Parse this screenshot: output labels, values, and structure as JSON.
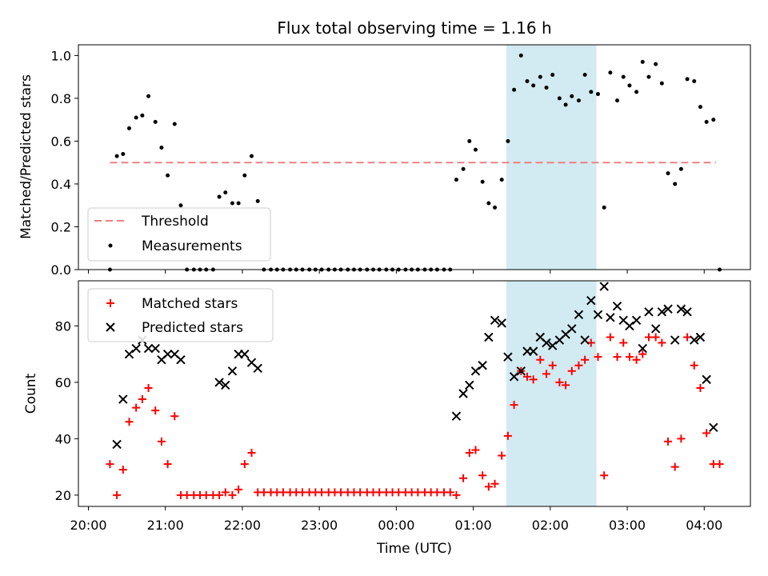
{
  "chart_data": {
    "title": "Flux total observing time = 1.16 h",
    "xlabel": "Time (UTC)",
    "x_unit": "hours since 20:00 UTC",
    "x_ticks": [
      {
        "value": 0,
        "label": "20:00"
      },
      {
        "value": 1,
        "label": "21:00"
      },
      {
        "value": 2,
        "label": "22:00"
      },
      {
        "value": 3,
        "label": "23:00"
      },
      {
        "value": 4,
        "label": "00:00"
      },
      {
        "value": 5,
        "label": "01:00"
      },
      {
        "value": 6,
        "label": "02:00"
      },
      {
        "value": 7,
        "label": "03:00"
      },
      {
        "value": 8,
        "label": "04:00"
      }
    ],
    "xlim": [
      -0.13,
      8.6
    ],
    "highlight": {
      "x_start": 5.43,
      "x_end": 6.6,
      "color": "#add8e6"
    },
    "top": {
      "type": "scatter",
      "ylabel": "Matched/Predicted stars",
      "ylim": [
        0,
        1.05
      ],
      "y_ticks": [
        "0.0",
        "0.2",
        "0.4",
        "0.6",
        "0.8",
        "1.0"
      ],
      "legend_position": "lower-left",
      "threshold": {
        "name": "Threshold",
        "value": 0.5,
        "x_start": 0.28,
        "x_end": 8.15,
        "color": "#f08080"
      },
      "series": [
        {
          "name": "Measurements",
          "color": "#000000",
          "marker": "dot",
          "points": [
            [
              0.28,
              0
            ],
            [
              0.37,
              0.53
            ],
            [
              0.45,
              0.54
            ],
            [
              0.53,
              0.66
            ],
            [
              0.62,
              0.71
            ],
            [
              0.7,
              0.72
            ],
            [
              0.78,
              0.81
            ],
            [
              0.87,
              0.69
            ],
            [
              0.95,
              0.57
            ],
            [
              1.03,
              0.44
            ],
            [
              1.12,
              0.68
            ],
            [
              1.2,
              0.3
            ],
            [
              1.28,
              0
            ],
            [
              1.37,
              0
            ],
            [
              1.45,
              0
            ],
            [
              1.53,
              0
            ],
            [
              1.62,
              0
            ],
            [
              1.7,
              0.34
            ],
            [
              1.78,
              0.36
            ],
            [
              1.87,
              0.31
            ],
            [
              1.95,
              0.31
            ],
            [
              2.03,
              0.44
            ],
            [
              2.12,
              0.53
            ],
            [
              2.2,
              0.32
            ],
            [
              2.28,
              0
            ],
            [
              2.37,
              0
            ],
            [
              2.45,
              0
            ],
            [
              2.53,
              0
            ],
            [
              2.62,
              0
            ],
            [
              2.7,
              0
            ],
            [
              2.78,
              0
            ],
            [
              2.87,
              0
            ],
            [
              2.95,
              0
            ],
            [
              3.03,
              0
            ],
            [
              3.12,
              0
            ],
            [
              3.2,
              0
            ],
            [
              3.28,
              0
            ],
            [
              3.37,
              0
            ],
            [
              3.45,
              0
            ],
            [
              3.53,
              0
            ],
            [
              3.62,
              0
            ],
            [
              3.7,
              0
            ],
            [
              3.78,
              0
            ],
            [
              3.87,
              0
            ],
            [
              3.95,
              0
            ],
            [
              4.03,
              0
            ],
            [
              4.12,
              0
            ],
            [
              4.2,
              0
            ],
            [
              4.28,
              0
            ],
            [
              4.37,
              0
            ],
            [
              4.45,
              0
            ],
            [
              4.53,
              0
            ],
            [
              4.62,
              0
            ],
            [
              4.7,
              0
            ],
            [
              4.78,
              0.42
            ],
            [
              4.87,
              0.47
            ],
            [
              4.95,
              0.6
            ],
            [
              5.03,
              0.56
            ],
            [
              5.12,
              0.41
            ],
            [
              5.2,
              0.31
            ],
            [
              5.28,
              0.29
            ],
            [
              5.37,
              0.42
            ],
            [
              5.45,
              0.6
            ],
            [
              5.53,
              0.84
            ],
            [
              5.62,
              1.0
            ],
            [
              5.7,
              0.88
            ],
            [
              5.78,
              0.86
            ],
            [
              5.87,
              0.9
            ],
            [
              5.95,
              0.85
            ],
            [
              6.03,
              0.91
            ],
            [
              6.12,
              0.8
            ],
            [
              6.2,
              0.77
            ],
            [
              6.28,
              0.81
            ],
            [
              6.37,
              0.79
            ],
            [
              6.45,
              0.91
            ],
            [
              6.53,
              0.83
            ],
            [
              6.62,
              0.82
            ],
            [
              6.7,
              0.29
            ],
            [
              6.78,
              0.92
            ],
            [
              6.87,
              0.79
            ],
            [
              6.95,
              0.9
            ],
            [
              7.03,
              0.86
            ],
            [
              7.12,
              0.83
            ],
            [
              7.2,
              0.97
            ],
            [
              7.28,
              0.9
            ],
            [
              7.37,
              0.96
            ],
            [
              7.45,
              0.87
            ],
            [
              7.53,
              0.45
            ],
            [
              7.62,
              0.4
            ],
            [
              7.7,
              0.47
            ],
            [
              7.78,
              0.89
            ],
            [
              7.87,
              0.88
            ],
            [
              7.95,
              0.76
            ],
            [
              8.03,
              0.69
            ],
            [
              8.12,
              0.7
            ],
            [
              8.2,
              0
            ]
          ]
        }
      ]
    },
    "bottom": {
      "type": "scatter",
      "ylabel": "Count",
      "ylim": [
        16,
        96
      ],
      "y_ticks": [
        "20",
        "40",
        "60",
        "80"
      ],
      "legend_position": "upper-left",
      "series": [
        {
          "name": "Matched stars",
          "color": "#ff0000",
          "marker": "plus",
          "points": [
            [
              0.28,
              31
            ],
            [
              0.37,
              20
            ],
            [
              0.45,
              29
            ],
            [
              0.53,
              46
            ],
            [
              0.62,
              51
            ],
            [
              0.7,
              54
            ],
            [
              0.78,
              58
            ],
            [
              0.87,
              50
            ],
            [
              0.95,
              39
            ],
            [
              1.03,
              31
            ],
            [
              1.12,
              48
            ],
            [
              1.2,
              20
            ],
            [
              1.28,
              20
            ],
            [
              1.37,
              20
            ],
            [
              1.45,
              20
            ],
            [
              1.53,
              20
            ],
            [
              1.62,
              20
            ],
            [
              1.7,
              20
            ],
            [
              1.78,
              21
            ],
            [
              1.87,
              20
            ],
            [
              1.95,
              22
            ],
            [
              2.03,
              31
            ],
            [
              2.12,
              35
            ],
            [
              2.2,
              21
            ],
            [
              2.28,
              21
            ],
            [
              2.37,
              21
            ],
            [
              2.45,
              21
            ],
            [
              2.53,
              21
            ],
            [
              2.62,
              21
            ],
            [
              2.7,
              21
            ],
            [
              2.78,
              21
            ],
            [
              2.87,
              21
            ],
            [
              2.95,
              21
            ],
            [
              3.03,
              21
            ],
            [
              3.12,
              21
            ],
            [
              3.2,
              21
            ],
            [
              3.28,
              21
            ],
            [
              3.37,
              21
            ],
            [
              3.45,
              21
            ],
            [
              3.53,
              21
            ],
            [
              3.62,
              21
            ],
            [
              3.7,
              21
            ],
            [
              3.78,
              21
            ],
            [
              3.87,
              21
            ],
            [
              3.95,
              21
            ],
            [
              4.03,
              21
            ],
            [
              4.12,
              21
            ],
            [
              4.2,
              21
            ],
            [
              4.28,
              21
            ],
            [
              4.37,
              21
            ],
            [
              4.45,
              21
            ],
            [
              4.53,
              21
            ],
            [
              4.62,
              21
            ],
            [
              4.7,
              21
            ],
            [
              4.78,
              20
            ],
            [
              4.87,
              26
            ],
            [
              4.95,
              35
            ],
            [
              5.03,
              36
            ],
            [
              5.12,
              27
            ],
            [
              5.2,
              23
            ],
            [
              5.28,
              24
            ],
            [
              5.37,
              34
            ],
            [
              5.45,
              41
            ],
            [
              5.53,
              52
            ],
            [
              5.62,
              64
            ],
            [
              5.7,
              62
            ],
            [
              5.78,
              61
            ],
            [
              5.87,
              68
            ],
            [
              5.95,
              63
            ],
            [
              6.03,
              66
            ],
            [
              6.12,
              60
            ],
            [
              6.2,
              59
            ],
            [
              6.28,
              64
            ],
            [
              6.37,
              66
            ],
            [
              6.45,
              68
            ],
            [
              6.53,
              74
            ],
            [
              6.62,
              69
            ],
            [
              6.7,
              27
            ],
            [
              6.78,
              76
            ],
            [
              6.87,
              69
            ],
            [
              6.95,
              74
            ],
            [
              7.03,
              69
            ],
            [
              7.12,
              68
            ],
            [
              7.2,
              70
            ],
            [
              7.28,
              76
            ],
            [
              7.37,
              76
            ],
            [
              7.45,
              74
            ],
            [
              7.53,
              39
            ],
            [
              7.62,
              30
            ],
            [
              7.7,
              40
            ],
            [
              7.78,
              76
            ],
            [
              7.87,
              66
            ],
            [
              7.95,
              58
            ],
            [
              8.03,
              42
            ],
            [
              8.12,
              31
            ],
            [
              8.2,
              31
            ]
          ]
        },
        {
          "name": "Predicted stars",
          "color": "#000000",
          "marker": "x",
          "points": [
            [
              0.37,
              38
            ],
            [
              0.45,
              54
            ],
            [
              0.53,
              70
            ],
            [
              0.62,
              72
            ],
            [
              0.7,
              75
            ],
            [
              0.78,
              72
            ],
            [
              0.87,
              72
            ],
            [
              0.95,
              68
            ],
            [
              1.03,
              70
            ],
            [
              1.12,
              70
            ],
            [
              1.2,
              68
            ],
            [
              1.7,
              60
            ],
            [
              1.78,
              59
            ],
            [
              1.87,
              64
            ],
            [
              1.95,
              70
            ],
            [
              2.03,
              70
            ],
            [
              2.12,
              67
            ],
            [
              2.2,
              65
            ],
            [
              4.78,
              48
            ],
            [
              4.87,
              56
            ],
            [
              4.95,
              59
            ],
            [
              5.03,
              64
            ],
            [
              5.12,
              66
            ],
            [
              5.2,
              76
            ],
            [
              5.28,
              82
            ],
            [
              5.37,
              81
            ],
            [
              5.45,
              69
            ],
            [
              5.53,
              62
            ],
            [
              5.62,
              64
            ],
            [
              5.7,
              71
            ],
            [
              5.78,
              71
            ],
            [
              5.87,
              76
            ],
            [
              5.95,
              74
            ],
            [
              6.03,
              73
            ],
            [
              6.12,
              75
            ],
            [
              6.2,
              77
            ],
            [
              6.28,
              79
            ],
            [
              6.37,
              84
            ],
            [
              6.45,
              75
            ],
            [
              6.53,
              89
            ],
            [
              6.62,
              84
            ],
            [
              6.7,
              94
            ],
            [
              6.78,
              83
            ],
            [
              6.87,
              87
            ],
            [
              6.95,
              82
            ],
            [
              7.03,
              80
            ],
            [
              7.12,
              82
            ],
            [
              7.2,
              72
            ],
            [
              7.28,
              85
            ],
            [
              7.37,
              79
            ],
            [
              7.45,
              85
            ],
            [
              7.53,
              86
            ],
            [
              7.62,
              75
            ],
            [
              7.7,
              86
            ],
            [
              7.78,
              85
            ],
            [
              7.87,
              75
            ],
            [
              7.95,
              76
            ],
            [
              8.03,
              61
            ],
            [
              8.12,
              44
            ]
          ]
        }
      ]
    }
  }
}
